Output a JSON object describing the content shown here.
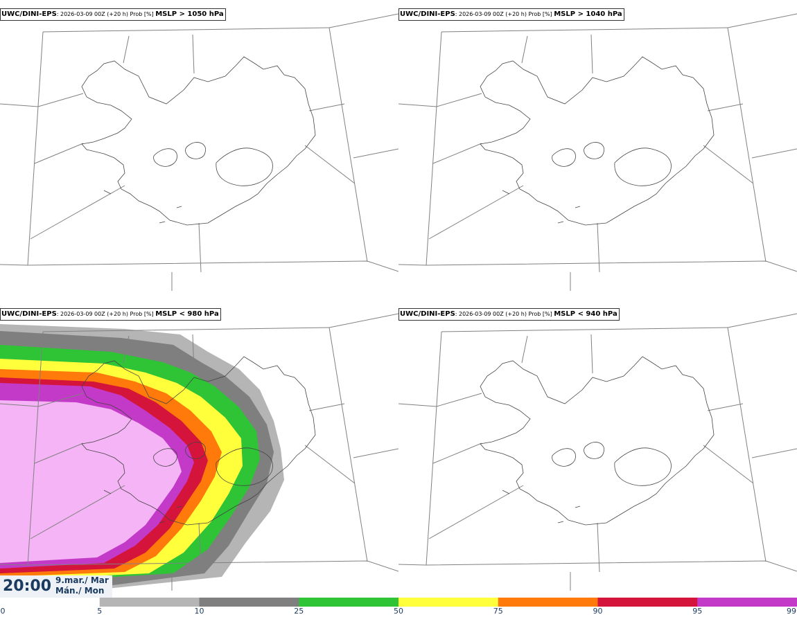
{
  "panels": [
    {
      "model": "UWC/DINI-EPS",
      "meta": ": 2026-03-09 00Z (+20 h) Prob [%] ",
      "threshold": "MSLP > 1050 hPa"
    },
    {
      "model": "UWC/DINI-EPS",
      "meta": ": 2026-03-09 00Z (+20 h) Prob [%] ",
      "threshold": "MSLP > 1040 hPa"
    },
    {
      "model": "UWC/DINI-EPS",
      "meta": ": 2026-03-09 00Z (+20 h) Prob [%] ",
      "threshold": "MSLP < 980 hPa"
    },
    {
      "model": "UWC/DINI-EPS",
      "meta": ": 2026-03-09 00Z (+20 h) Prob [%] ",
      "threshold": "MSLP < 940 hPa"
    }
  ],
  "time": "20:00",
  "date_line1": "9.mar./ Mar",
  "date_line2": "Mán./ Mon",
  "colorbar": {
    "ticks": [
      "0",
      "5",
      "10",
      "25",
      "50",
      "75",
      "90",
      "95",
      "99"
    ],
    "colors": [
      "#ffffff",
      "#b5b5b5",
      "#7f7f7f",
      "#2ec436",
      "#ffff3c",
      "#ff7a0a",
      "#d4143a",
      "#c43ac8",
      "#f5b4f5"
    ]
  },
  "prob_colors": {
    "p5": "#b5b5b5",
    "p10": "#7f7f7f",
    "p25": "#2ec436",
    "p50": "#ffff3c",
    "p75": "#ff7a0a",
    "p90": "#d4143a",
    "p95": "#c43ac8",
    "p99": "#f5b4f5"
  }
}
